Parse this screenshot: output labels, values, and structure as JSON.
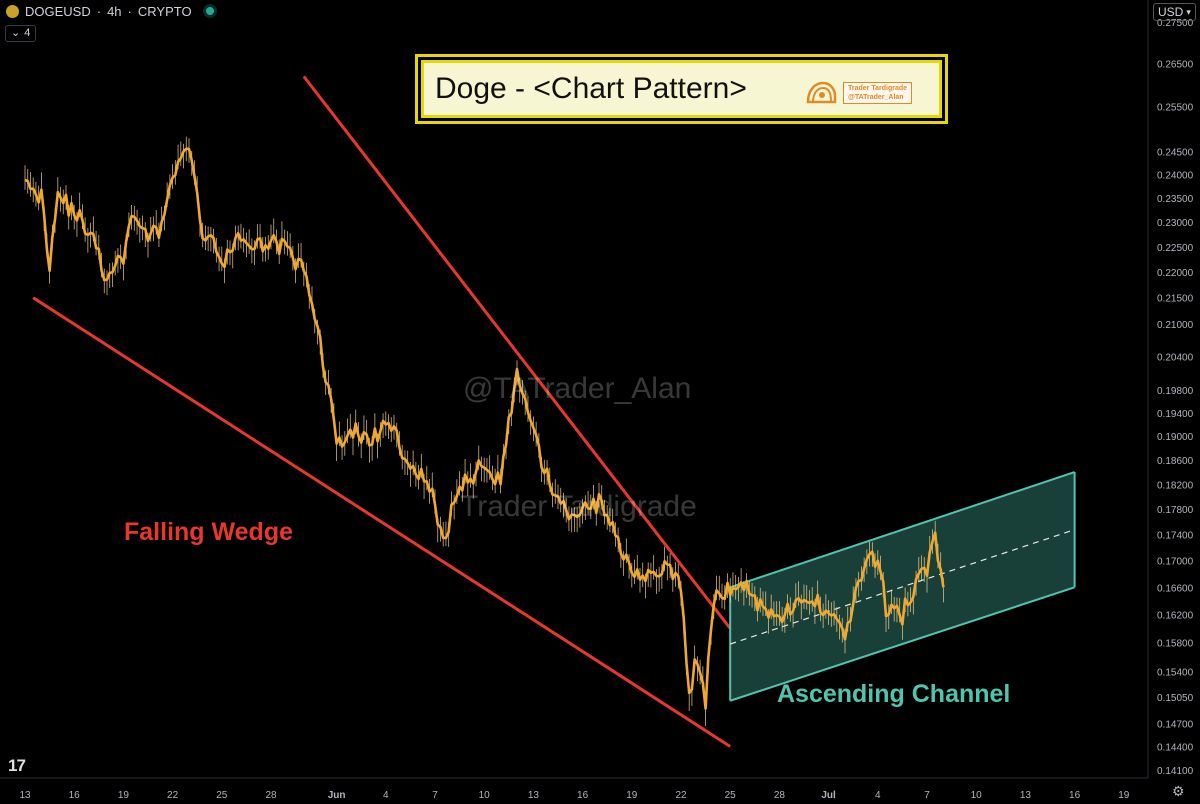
{
  "header": {
    "symbol": "DOGEUSD",
    "interval": "4h",
    "exchange": "CRYPTO",
    "separator": "·",
    "indicator_count": "4",
    "currency": "USD"
  },
  "annotations": {
    "title": "Doge - <Chart Pattern>",
    "badge_line1": "Trader Tardigrade",
    "badge_line2": "@TATrader_Alan",
    "falling_wedge_label": "Falling Wedge",
    "ascending_channel_label": "Ascending Channel",
    "watermark_1": "@TATrader_Alan",
    "watermark_2": "Trader Tardigrade"
  },
  "colors": {
    "background": "#000000",
    "candles": "#f0a930",
    "wedge_lines": "#e8372c",
    "channel": "#4fc5b0",
    "title_border": "#e6d800"
  },
  "chart_data": {
    "type": "line",
    "title": "",
    "xlabel": "",
    "ylabel": "",
    "y_scale": "log",
    "ylim": [
      0.14,
      0.278
    ],
    "y_ticks": [
      "0.27500",
      "0.26500",
      "0.25500",
      "0.24500",
      "0.24000",
      "0.23500",
      "0.23000",
      "0.22500",
      "0.22000",
      "0.21500",
      "0.21000",
      "0.20400",
      "0.19800",
      "0.19400",
      "0.19000",
      "0.18600",
      "0.18200",
      "0.17800",
      "0.17400",
      "0.17000",
      "0.16600",
      "0.16200",
      "0.15800",
      "0.15400",
      "0.15050",
      "0.14700",
      "0.14400",
      "0.14100"
    ],
    "x_ticks": [
      "13",
      "16",
      "19",
      "22",
      "25",
      "28",
      "Jun",
      "4",
      "7",
      "10",
      "13",
      "16",
      "19",
      "22",
      "25",
      "28",
      "Jul",
      "4",
      "7",
      "10",
      "13",
      "16",
      "19"
    ],
    "x_tick_days": [
      0,
      3,
      6,
      9,
      12,
      15,
      19,
      22,
      25,
      28,
      31,
      34,
      37,
      40,
      43,
      46,
      49,
      52,
      55,
      58,
      61,
      64,
      67
    ],
    "series": [
      {
        "x": [
          0,
          1,
          1.5,
          2,
          3,
          4,
          5,
          6,
          6.5,
          7,
          8,
          9,
          10,
          10.5,
          11,
          11.5,
          12,
          13,
          14,
          15,
          16,
          17,
          18,
          19,
          20,
          21,
          22,
          23,
          24,
          25,
          25.5,
          26,
          27,
          28,
          29,
          29.5,
          30,
          31,
          32,
          33,
          34,
          35,
          36,
          37,
          38,
          39,
          40,
          40.5,
          41,
          41.5,
          42,
          43,
          44,
          45,
          46,
          47,
          48,
          49,
          50,
          51,
          52,
          52.5,
          53,
          53.5,
          54,
          55,
          55.5,
          56
        ],
        "y": [
          0.241,
          0.235,
          0.222,
          0.236,
          0.232,
          0.228,
          0.218,
          0.223,
          0.232,
          0.229,
          0.227,
          0.238,
          0.247,
          0.234,
          0.225,
          0.227,
          0.22,
          0.228,
          0.224,
          0.227,
          0.224,
          0.22,
          0.207,
          0.189,
          0.191,
          0.189,
          0.192,
          0.188,
          0.184,
          0.179,
          0.172,
          0.178,
          0.183,
          0.185,
          0.183,
          0.193,
          0.2,
          0.19,
          0.182,
          0.177,
          0.178,
          0.179,
          0.174,
          0.169,
          0.168,
          0.169,
          0.166,
          0.151,
          0.156,
          0.15,
          0.164,
          0.166,
          0.166,
          0.163,
          0.162,
          0.163,
          0.164,
          0.163,
          0.159,
          0.168,
          0.171,
          0.163,
          0.162,
          0.162,
          0.165,
          0.169,
          0.174,
          0.166
        ]
      }
    ],
    "drawings": [
      {
        "name": "Falling Wedge upper line",
        "points": [
          [
            17,
            0.262
          ],
          [
            43,
            0.16
          ]
        ]
      },
      {
        "name": "Falling Wedge lower line",
        "points": [
          [
            0.5,
            0.215
          ],
          [
            43,
            0.144
          ]
        ]
      },
      {
        "name": "Ascending Channel upper",
        "points": [
          [
            43,
            0.166
          ],
          [
            64,
            0.184
          ]
        ]
      },
      {
        "name": "Ascending Channel lower",
        "points": [
          [
            43,
            0.15
          ],
          [
            64,
            0.166
          ]
        ]
      }
    ]
  }
}
